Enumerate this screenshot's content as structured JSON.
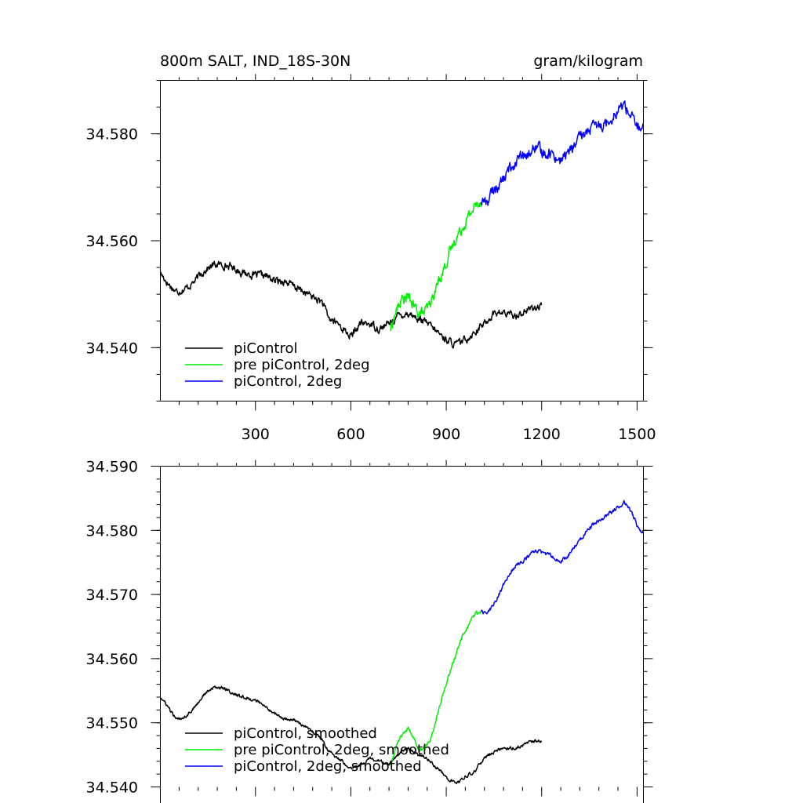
{
  "chart_data": [
    {
      "type": "line",
      "title": "800m SALT, IND_18S-30N",
      "units_label": "gram/kilogram",
      "xlim": [
        1,
        1520
      ],
      "ylim": [
        34.53,
        34.59
      ],
      "xticks": [
        300,
        600,
        900,
        1200,
        1500
      ],
      "xtick_labels": [
        "300",
        "600",
        "900",
        "1200",
        "1500"
      ],
      "yticks": [
        34.54,
        34.56,
        34.58
      ],
      "ytick_labels": [
        "34.540",
        "34.560",
        "34.580"
      ],
      "grid": false,
      "legend_position": "bottom-left",
      "series": [
        {
          "name": "piControl",
          "color": "#000000",
          "noise": 0.0011,
          "x": [
            1,
            25,
            50,
            80,
            110,
            140,
            170,
            200,
            230,
            260,
            300,
            330,
            360,
            390,
            420,
            450,
            480,
            510,
            530,
            560,
            600,
            630,
            660,
            690,
            720,
            750,
            780,
            810,
            840,
            870,
            900,
            930,
            960,
            990,
            1020,
            1050,
            1080,
            1110,
            1140,
            1170,
            1200
          ],
          "y": [
            34.554,
            34.552,
            34.5505,
            34.551,
            34.5525,
            34.5545,
            34.5555,
            34.5555,
            34.555,
            34.554,
            34.5535,
            34.5535,
            34.5525,
            34.5525,
            34.5515,
            34.5505,
            34.5495,
            34.5485,
            34.5455,
            34.5445,
            34.542,
            34.5445,
            34.5445,
            34.5435,
            34.5445,
            34.546,
            34.5465,
            34.5455,
            34.5445,
            34.543,
            34.5415,
            34.5405,
            34.5415,
            34.543,
            34.5445,
            34.5465,
            34.5465,
            34.546,
            34.5465,
            34.5475,
            34.5475
          ]
        },
        {
          "name": "pre piControl, 2deg",
          "color": "#00ee00",
          "noise": 0.0016,
          "x": [
            725,
            740,
            760,
            780,
            800,
            815,
            830,
            850,
            870,
            890,
            910,
            930,
            950,
            970,
            990,
            1010
          ],
          "y": [
            34.5435,
            34.5465,
            34.549,
            34.5495,
            34.5475,
            34.5465,
            34.5465,
            34.548,
            34.5515,
            34.5545,
            34.5575,
            34.5605,
            34.5625,
            34.5645,
            34.5665,
            34.5675
          ]
        },
        {
          "name": "piControl, 2deg",
          "color": "#0000ff",
          "noise": 0.0017,
          "x": [
            1010,
            1030,
            1050,
            1080,
            1100,
            1130,
            1150,
            1180,
            1200,
            1230,
            1260,
            1290,
            1320,
            1350,
            1380,
            1410,
            1440,
            1460,
            1490,
            1510,
            1520
          ],
          "y": [
            34.5675,
            34.5675,
            34.5695,
            34.5715,
            34.5735,
            34.5755,
            34.5755,
            34.5775,
            34.5765,
            34.5765,
            34.575,
            34.577,
            34.579,
            34.581,
            34.5815,
            34.5825,
            34.5845,
            34.5855,
            34.5825,
            34.5805,
            34.5805
          ]
        }
      ]
    },
    {
      "type": "line",
      "xlim": [
        1,
        1520
      ],
      "ylim": [
        34.54,
        34.59
      ],
      "xticks": [
        300,
        600,
        900,
        1200,
        1500
      ],
      "yticks": [
        34.54,
        34.55,
        34.56,
        34.57,
        34.58,
        34.59
      ],
      "ytick_labels": [
        "34.540",
        "34.550",
        "34.560",
        "34.570",
        "34.580",
        "34.590"
      ],
      "grid": false,
      "legend_position": "bottom-left",
      "series": [
        {
          "name": "piControl, smoothed",
          "color": "#000000",
          "noise": 0.0004,
          "x": [
            1,
            25,
            50,
            80,
            110,
            140,
            170,
            200,
            230,
            260,
            300,
            330,
            360,
            390,
            420,
            450,
            480,
            510,
            530,
            560,
            600,
            630,
            660,
            690,
            720,
            750,
            780,
            810,
            840,
            870,
            900,
            930,
            960,
            990,
            1020,
            1050,
            1080,
            1110,
            1140,
            1170,
            1200
          ],
          "y": [
            34.554,
            34.5525,
            34.5505,
            34.551,
            34.5525,
            34.5545,
            34.5555,
            34.5555,
            34.5545,
            34.554,
            34.5535,
            34.5525,
            34.5515,
            34.5505,
            34.5505,
            34.5495,
            34.5485,
            34.5475,
            34.5455,
            34.5445,
            34.543,
            34.5435,
            34.5445,
            34.544,
            34.5435,
            34.545,
            34.546,
            34.545,
            34.5445,
            34.543,
            34.5415,
            34.5405,
            34.5415,
            34.5425,
            34.5445,
            34.5455,
            34.546,
            34.546,
            34.5465,
            34.547,
            34.5472
          ]
        },
        {
          "name": "pre piControl, 2deg, smoothed",
          "color": "#00ee00",
          "noise": 0.0005,
          "x": [
            725,
            740,
            760,
            780,
            800,
            815,
            830,
            850,
            870,
            890,
            910,
            930,
            950,
            970,
            990,
            1010
          ],
          "y": [
            34.5435,
            34.546,
            34.548,
            34.549,
            34.5475,
            34.546,
            34.546,
            34.5475,
            34.551,
            34.5545,
            34.5575,
            34.5605,
            34.5635,
            34.565,
            34.567,
            34.5675
          ]
        },
        {
          "name": "piControl, 2deg, smoothed",
          "color": "#0000ff",
          "noise": 0.0005,
          "x": [
            1010,
            1030,
            1050,
            1080,
            1100,
            1130,
            1150,
            1180,
            1200,
            1230,
            1260,
            1290,
            1320,
            1350,
            1380,
            1410,
            1440,
            1460,
            1490,
            1510,
            1520
          ],
          "y": [
            34.5675,
            34.567,
            34.5685,
            34.5715,
            34.5735,
            34.575,
            34.5755,
            34.577,
            34.5765,
            34.576,
            34.575,
            34.5765,
            34.5785,
            34.5805,
            34.5815,
            34.5825,
            34.5835,
            34.5845,
            34.582,
            34.5795,
            34.5802
          ]
        }
      ]
    }
  ]
}
